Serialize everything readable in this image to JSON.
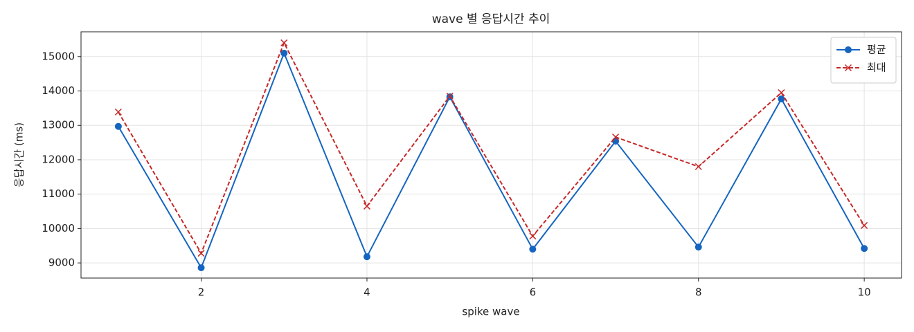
{
  "chart_data": {
    "type": "line",
    "title": "wave 별 응답시간 추이",
    "x_label": "spike wave",
    "y_label": "응답시간 (ms)",
    "x": [
      1,
      2,
      3,
      4,
      5,
      6,
      7,
      8,
      9,
      10
    ],
    "series": [
      {
        "name": "평균",
        "color": "#1565c0",
        "marker": "o",
        "linestyle": "solid",
        "values": [
          12970,
          8860,
          15100,
          9180,
          13830,
          9400,
          12540,
          9460,
          13770,
          9420
        ]
      },
      {
        "name": "최대",
        "color": "#c62828",
        "marker": "x",
        "linestyle": "dashed",
        "values": [
          13390,
          9280,
          15400,
          10650,
          13850,
          9780,
          12660,
          11800,
          13950,
          10090
        ]
      }
    ],
    "xlim": [
      0.55,
      10.45
    ],
    "xticks": [
      2,
      4,
      6,
      8,
      10
    ],
    "ylim": [
      8560,
      15720
    ],
    "yticks": [
      9000,
      10000,
      11000,
      12000,
      13000,
      14000,
      15000
    ],
    "grid": true,
    "legend": "upper right"
  }
}
